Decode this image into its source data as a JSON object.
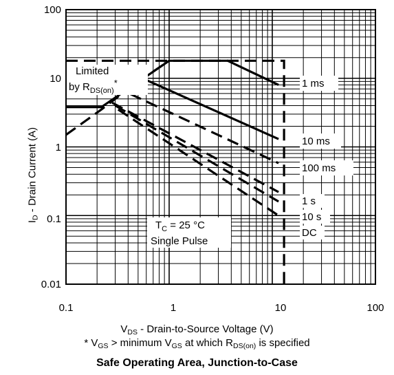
{
  "chart_data": {
    "type": "line",
    "title": "Safe Operating Area, Junction-to-Case",
    "xlabel": {
      "prefix": "V",
      "sub": "DS",
      "rest": " - Drain-to-Source Voltage (V)"
    },
    "ylabel": {
      "prefix": "I",
      "sub": "D",
      "rest": " - Drain Current (A)"
    },
    "footnote": {
      "p1": "* V",
      "s1": "GS",
      "p2": " > minimum V",
      "s2": "GS",
      "p3": " at which R",
      "s3": "DS(on)",
      "p4": " is specified"
    },
    "x_scale": "log",
    "y_scale": "log",
    "xlim": [
      0.1,
      100
    ],
    "ylim": [
      0.01,
      100
    ],
    "x_ticks": [
      0.1,
      1,
      10,
      100
    ],
    "x_tick_labels": [
      "0.1",
      "1",
      "10",
      "100"
    ],
    "y_ticks": [
      0.01,
      0.1,
      1,
      10,
      100
    ],
    "y_tick_labels": [
      "0.01",
      "0.1",
      "1",
      "10",
      "100"
    ],
    "grid": true,
    "series": [
      {
        "name": "Limited by RDS(on)*",
        "style": "dashed",
        "points": [
          [
            0.1,
            1.5
          ],
          [
            0.22,
            3.5
          ],
          [
            0.45,
            8
          ],
          [
            1,
            18
          ]
        ]
      },
      {
        "name": "",
        "style": "dashed",
        "points": [
          [
            0.1,
            18
          ],
          [
            13,
            18
          ],
          [
            13,
            0.01
          ]
        ]
      },
      {
        "name": "1 ms",
        "style": "solid",
        "points": [
          [
            0.1,
            3.8
          ],
          [
            0.22,
            3.8
          ],
          [
            1,
            18
          ],
          [
            3.7,
            18
          ],
          [
            11.5,
            8
          ]
        ]
      },
      {
        "name": "10 ms",
        "style": "solid",
        "points": [
          [
            0.55,
            10
          ],
          [
            11.5,
            1.3
          ]
        ]
      },
      {
        "name": "100 ms",
        "style": "dashed",
        "points": [
          [
            0.42,
            5.9
          ],
          [
            11.5,
            0.58
          ]
        ]
      },
      {
        "name": "1 s",
        "style": "dashed",
        "points": [
          [
            0.28,
            4.4
          ],
          [
            11.5,
            0.22
          ]
        ]
      },
      {
        "name": "10 s",
        "style": "dashed",
        "points": [
          [
            0.3,
            4.0
          ],
          [
            11.5,
            0.16
          ]
        ]
      },
      {
        "name": "DC",
        "style": "dashed",
        "points": [
          [
            0.32,
            3.5
          ],
          [
            11.5,
            0.1
          ]
        ]
      }
    ],
    "annotations": {
      "limited_line1": "Limited",
      "limited_by": "by R",
      "limited_sub": "DS(on)",
      "limited_star": "*",
      "tc_prefix": "T",
      "tc_sub": "C",
      "tc_rest": " = 25 °C",
      "single_pulse": "Single Pulse"
    },
    "labels": {
      "ms1": "1 ms",
      "ms10": "10 ms",
      "ms100": "100 ms",
      "s1": "1 s",
      "s10": "10 s",
      "dc": "DC"
    }
  }
}
